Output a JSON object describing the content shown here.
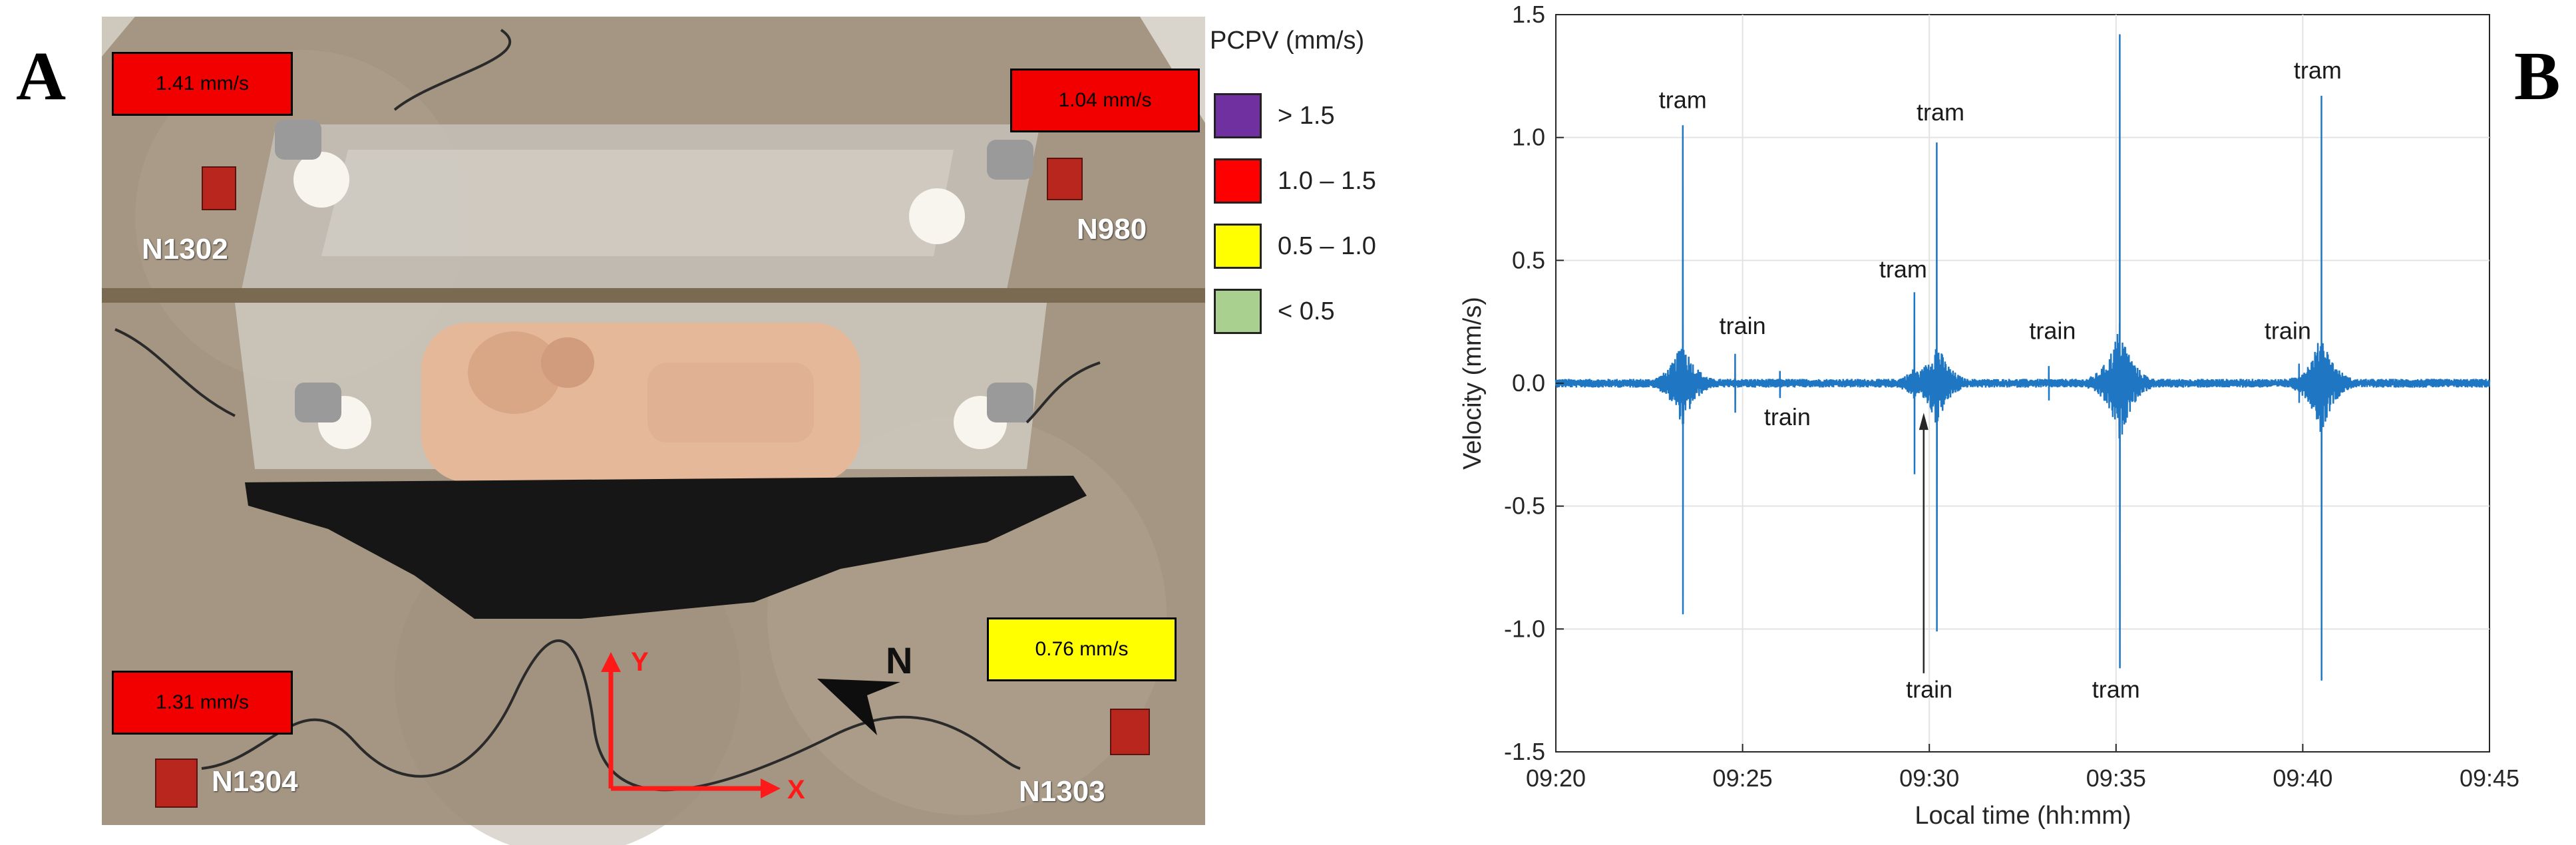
{
  "panel_a": {
    "letter": "A",
    "value_boxes": [
      {
        "text": "1.41 mm/s",
        "color": "#f20000"
      },
      {
        "text": "1.04 mm/s",
        "color": "#f20000"
      },
      {
        "text": "1.31 mm/s",
        "color": "#f20000"
      },
      {
        "text": "0.76 mm/s",
        "color": "#ffff00"
      }
    ],
    "sensors": [
      "N1302",
      "N980",
      "N1304",
      "N1303"
    ],
    "axes": {
      "y": "Y",
      "x": "X"
    },
    "north": "N"
  },
  "legend": {
    "title": "PCPV (mm/s)",
    "items": [
      {
        "label": "> 1.5",
        "color": "#7030a0"
      },
      {
        "label": "1.0 – 1.5",
        "color": "#ff0000"
      },
      {
        "label": "0.5 – 1.0",
        "color": "#ffff00"
      },
      {
        "label": "< 0.5",
        "color": "#a9d08e"
      }
    ]
  },
  "panel_b": {
    "letter": "B"
  },
  "chart_data": {
    "type": "line",
    "xlabel": "Local time (hh:mm)",
    "ylabel": "Velocity (mm/s)",
    "ylim": [
      -1.5,
      1.5
    ],
    "yticks": [
      "1.5",
      "1.0",
      "0.5",
      "0.0",
      "-0.5",
      "-1.0",
      "-1.5"
    ],
    "ytick_values": [
      1.5,
      1.0,
      0.5,
      0.0,
      -0.5,
      -1.0,
      -1.5
    ],
    "xlim": [
      "09:20",
      "09:45"
    ],
    "xticks": [
      "09:20",
      "09:25",
      "09:30",
      "09:35",
      "09:40",
      "09:45"
    ],
    "grid": true,
    "series_color": "#1f77c4",
    "events": [
      {
        "time": "09:23.4",
        "max": 1.05,
        "min": -0.94
      },
      {
        "time": "09:24.8",
        "max": 0.12,
        "min": -0.12
      },
      {
        "time": "09:26.0",
        "max": 0.05,
        "min": -0.06
      },
      {
        "time": "09:29.6",
        "max": 0.37,
        "min": -0.37
      },
      {
        "time": "09:30.2",
        "max": 0.98,
        "min": -1.01
      },
      {
        "time": "09:33.2",
        "max": 0.07,
        "min": -0.07
      },
      {
        "time": "09:35.1",
        "max": 1.42,
        "min": -1.16
      },
      {
        "time": "09:39.9",
        "max": 0.08,
        "min": -0.08
      },
      {
        "time": "09:40.5",
        "max": 1.17,
        "min": -1.21
      }
    ],
    "annotations": [
      {
        "text": "tram",
        "time": "09:23.4",
        "value": 1.12
      },
      {
        "text": "train",
        "time": "09:25.0",
        "value": 0.2
      },
      {
        "text": "train",
        "time": "09:26.2",
        "value": -0.17
      },
      {
        "text": "tram",
        "time": "09:29.3",
        "value": 0.43
      },
      {
        "text": "tram",
        "time": "09:30.3",
        "value": 1.07
      },
      {
        "text": "train",
        "time": "09:30.0",
        "value": -1.28
      },
      {
        "text": "train",
        "time": "09:33.3",
        "value": 0.18
      },
      {
        "text": "tram",
        "time": "09:35.0",
        "value": -1.28
      },
      {
        "text": "train",
        "time": "09:39.6",
        "value": 0.18
      },
      {
        "text": "tram",
        "time": "09:40.4",
        "value": 1.24
      }
    ]
  }
}
